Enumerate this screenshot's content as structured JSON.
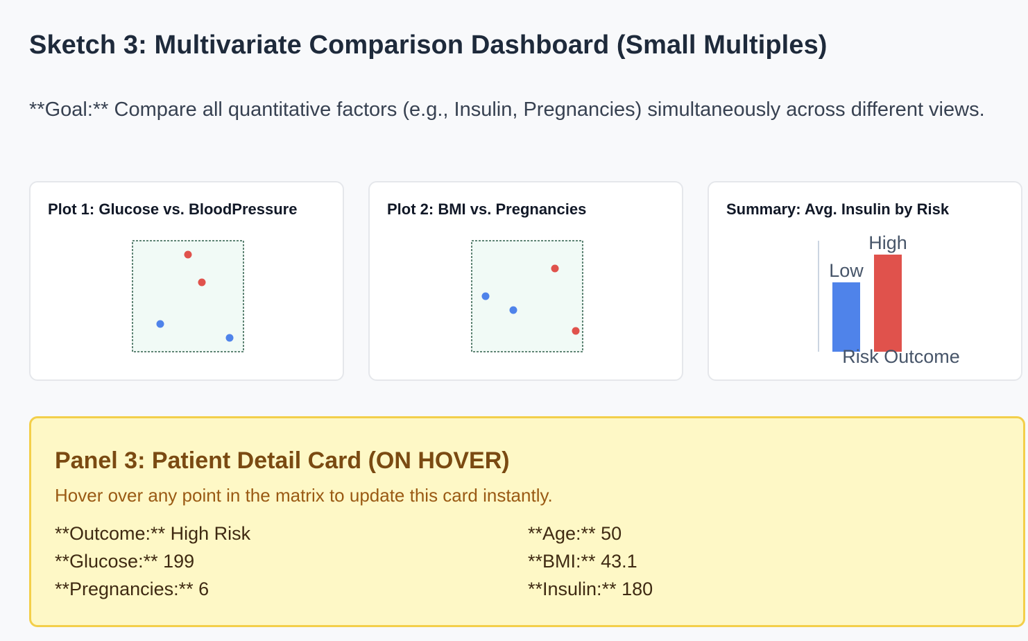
{
  "heading": "Sketch 3: Multivariate Comparison Dashboard (Small Multiples)",
  "goal": "**Goal:** Compare all quantitative factors (e.g., Insulin, Pregnancies) simultaneously across different views.",
  "colors": {
    "high_risk": "#e0524c",
    "low_risk": "#4f83ea",
    "plot_bg": "#f1faf6",
    "plot_border": "#2e5e4a",
    "panel_bg": "#fef8c6",
    "panel_border": "#f3cf4a"
  },
  "cards": [
    {
      "title": "Plot 1: Glucose vs. BloodPressure"
    },
    {
      "title": "Plot 2: BMI vs. Pregnancies"
    },
    {
      "title": "Summary: Avg. Insulin by Risk"
    }
  ],
  "chart_data": [
    {
      "type": "scatter",
      "xlim": [
        0,
        8
      ],
      "ylim": [
        0,
        8
      ],
      "grid": false,
      "series": [
        {
          "risk": "high",
          "points": [
            [
              4,
              7
            ],
            [
              5,
              5
            ]
          ]
        },
        {
          "risk": "low",
          "points": [
            [
              2,
              2
            ],
            [
              7,
              1
            ]
          ]
        }
      ]
    },
    {
      "type": "scatter",
      "xlim": [
        0,
        8
      ],
      "ylim": [
        0,
        8
      ],
      "grid": false,
      "series": [
        {
          "risk": "high",
          "points": [
            [
              6,
              6
            ],
            [
              7.5,
              1.5
            ]
          ]
        },
        {
          "risk": "low",
          "points": [
            [
              1,
              4
            ],
            [
              3,
              3
            ]
          ]
        }
      ]
    },
    {
      "type": "bar",
      "xlabel": "Risk Outcome",
      "categories": [
        "Low",
        "High"
      ],
      "values": [
        100,
        140
      ],
      "ylim": [
        0,
        160
      ],
      "data_labels": true
    }
  ],
  "panel": {
    "title": "Panel 3: Patient Detail Card (ON HOVER)",
    "subtitle": "Hover over any point in the matrix to update this card instantly.",
    "fields": [
      {
        "label": "**Outcome:**",
        "value": "High Risk"
      },
      {
        "label": "**Glucose:**",
        "value": "199"
      },
      {
        "label": "**Pregnancies:**",
        "value": "6"
      },
      {
        "label": "**Age:**",
        "value": "50"
      },
      {
        "label": "**BMI:**",
        "value": "43.1"
      },
      {
        "label": "**Insulin:**",
        "value": "180"
      }
    ]
  }
}
